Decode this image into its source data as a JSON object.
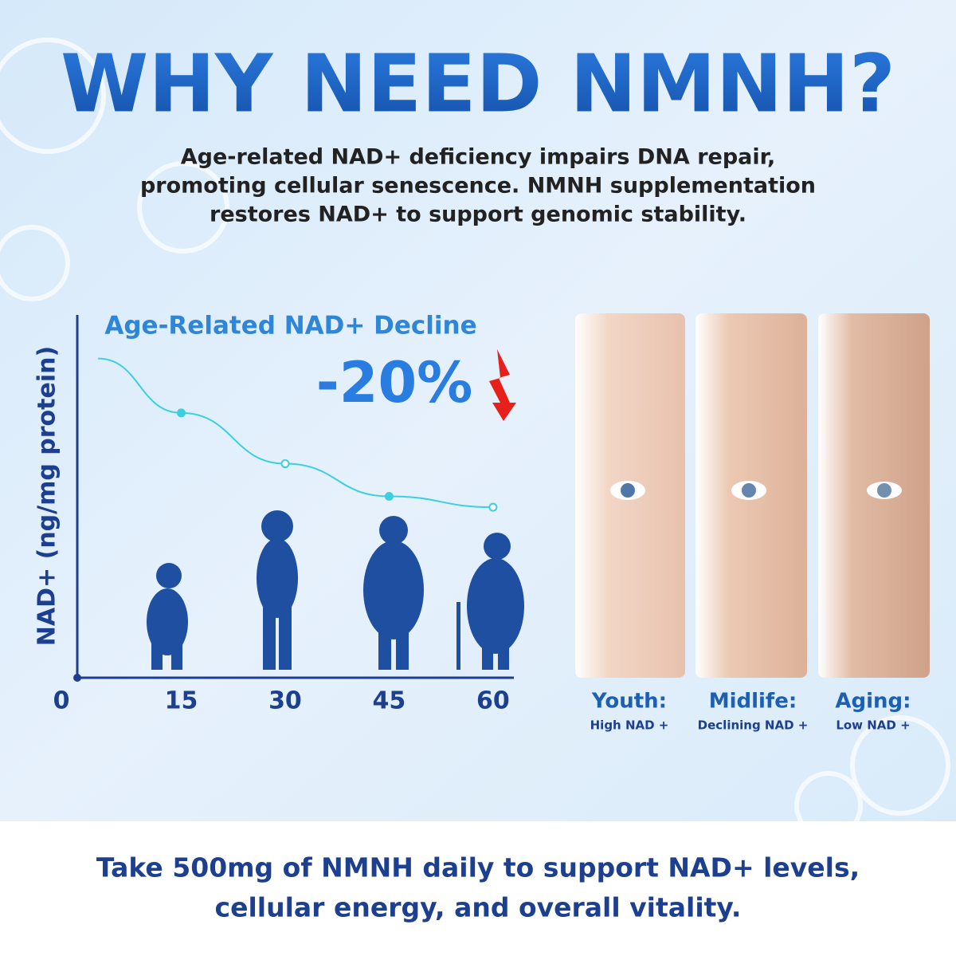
{
  "header": {
    "title": "WHY NEED NMNH?",
    "subtitle_lines": [
      "Age-related NAD+ deficiency impairs DNA repair,",
      "promoting cellular senescence. NMNH supplementation",
      "restores NAD+ to support genomic stability."
    ]
  },
  "chart_data": {
    "type": "line",
    "title": "Age-Related NAD+ Decline",
    "annotation": "-20%",
    "y_label": "NAD+ (ng/mg protein)",
    "x": [
      3,
      15,
      30,
      45,
      60
    ],
    "values": [
      88,
      73,
      59,
      50,
      47
    ],
    "color": "#3ccfe0",
    "xlim": [
      0,
      63
    ],
    "ylim": [
      0,
      100
    ],
    "xticks": [
      0,
      15,
      30,
      45,
      60
    ]
  },
  "panels": [
    {
      "title": "Youth:",
      "subtitle": "High NAD +"
    },
    {
      "title": "Midlife:",
      "subtitle": "Declining NAD +"
    },
    {
      "title": "Aging:",
      "subtitle": "Low NAD +"
    }
  ],
  "footer": {
    "lines": [
      "Take 500mg of NMNH daily to support NAD+ levels,",
      "cellular energy, and overall vitality."
    ]
  }
}
